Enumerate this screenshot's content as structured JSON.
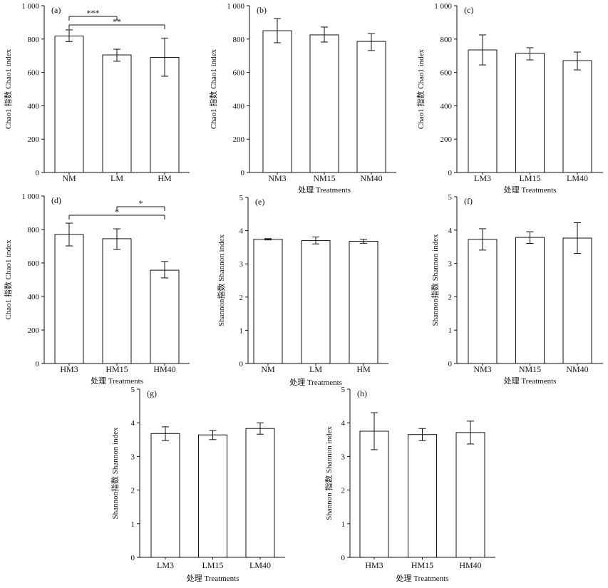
{
  "chart_data": [
    {
      "label": "(a)",
      "type": "bar",
      "categories": [
        "NM",
        "LM",
        "HM"
      ],
      "values": [
        818,
        705,
        690
      ],
      "errors": [
        [
          785,
          855
        ],
        [
          667,
          739
        ],
        [
          577,
          806
        ]
      ],
      "ylabel": "Chao1 指数 Chao1 index",
      "ylim": [
        0,
        1000
      ],
      "yticks": [
        0,
        200,
        400,
        600,
        800,
        1000
      ],
      "ytick_labels": [
        "0",
        "200",
        "400",
        "600",
        "800",
        "1 000"
      ],
      "significance": [
        {
          "from": "NM",
          "to": "LM",
          "label": "***"
        },
        {
          "from": "NM",
          "to": "HM",
          "label": "**"
        }
      ]
    },
    {
      "label": "(b)",
      "type": "bar",
      "categories": [
        "NM3",
        "NM15",
        "NM40"
      ],
      "values": [
        850,
        825,
        786
      ],
      "errors": [
        [
          778,
          923
        ],
        [
          782,
          872
        ],
        [
          731,
          833
        ]
      ],
      "ylabel": "Chao1 指数 Chao1 index",
      "xlabel": "处理 Treatments",
      "ylim": [
        0,
        1000
      ],
      "yticks": [
        0,
        200,
        400,
        600,
        800,
        1000
      ],
      "ytick_labels": [
        "0",
        "200",
        "400",
        "600",
        "800",
        "1 000"
      ]
    },
    {
      "label": "(c)",
      "type": "bar",
      "categories": [
        "LM3",
        "LM15",
        "LM40"
      ],
      "values": [
        735,
        714,
        671
      ],
      "errors": [
        [
          645,
          825
        ],
        [
          675,
          748
        ],
        [
          615,
          722
        ]
      ],
      "ylabel": "Chao1 指数 Chao1 index",
      "xlabel": "处理 Treatments",
      "ylim": [
        0,
        1000
      ],
      "yticks": [
        0,
        200,
        400,
        600,
        800,
        1000
      ],
      "ytick_labels": [
        "0",
        "200",
        "400",
        "600",
        "800",
        "1 000"
      ]
    },
    {
      "label": "(d)",
      "type": "bar",
      "categories": [
        "HM3",
        "HM15",
        "HM40"
      ],
      "values": [
        770,
        745,
        557
      ],
      "errors": [
        [
          702,
          838
        ],
        [
          681,
          804
        ],
        [
          511,
          609
        ]
      ],
      "ylabel": "Chao1 指数 Chao1 index",
      "xlabel": "处理 Treatments",
      "ylim": [
        0,
        1000
      ],
      "yticks": [
        0,
        200,
        400,
        600,
        800,
        1000
      ],
      "ytick_labels": [
        "0",
        "200",
        "400",
        "600",
        "800",
        "1 000"
      ],
      "significance": [
        {
          "from": "HM15",
          "to": "HM40",
          "label": "*"
        },
        {
          "from": "HM3",
          "to": "HM40",
          "label": "*"
        }
      ]
    },
    {
      "label": "(e)",
      "type": "bar",
      "categories": [
        "NM",
        "LM",
        "HM"
      ],
      "values": [
        3.74,
        3.7,
        3.68
      ],
      "errors": [
        [
          3.72,
          3.76
        ],
        [
          3.6,
          3.81
        ],
        [
          3.62,
          3.74
        ]
      ],
      "ylabel": "Shannon指数 Shannon index",
      "xlabel": "处理 Treatments",
      "ylim": [
        0,
        5
      ],
      "yticks": [
        0,
        1,
        2,
        3,
        4,
        5
      ],
      "ytick_labels": [
        "0",
        "1",
        "2",
        "3",
        "4",
        "5"
      ]
    },
    {
      "label": "(f)",
      "type": "bar",
      "categories": [
        "NM3",
        "NM15",
        "NM40"
      ],
      "values": [
        3.72,
        3.78,
        3.76
      ],
      "errors": [
        [
          3.4,
          4.04
        ],
        [
          3.6,
          3.95
        ],
        [
          3.3,
          4.22
        ]
      ],
      "ylabel": "Shannon指数 Shannon index",
      "xlabel": "处理 Treatments",
      "ylim": [
        0,
        5
      ],
      "yticks": [
        0,
        1,
        2,
        3,
        4,
        5
      ],
      "ytick_labels": [
        "0",
        "1",
        "2",
        "3",
        "4",
        "5"
      ]
    },
    {
      "label": "(g)",
      "type": "bar",
      "categories": [
        "LM3",
        "LM15",
        "LM40"
      ],
      "values": [
        3.68,
        3.64,
        3.83
      ],
      "errors": [
        [
          3.47,
          3.88
        ],
        [
          3.5,
          3.77
        ],
        [
          3.66,
          4.0
        ]
      ],
      "ylabel": "Shannon指数 Shannon index",
      "xlabel": "处理 Treatments",
      "ylim": [
        0,
        5
      ],
      "yticks": [
        0,
        1,
        2,
        3,
        4,
        5
      ],
      "ytick_labels": [
        "0",
        "1",
        "2",
        "3",
        "4",
        "5"
      ]
    },
    {
      "label": "(h)",
      "type": "bar",
      "categories": [
        "HM3",
        "HM15",
        "HM40"
      ],
      "values": [
        3.75,
        3.65,
        3.71
      ],
      "errors": [
        [
          3.2,
          4.3
        ],
        [
          3.47,
          3.83
        ],
        [
          3.37,
          4.05
        ]
      ],
      "ylabel": "Shannon 指数 Shannon index",
      "xlabel": "处理 Treatments",
      "ylim": [
        0,
        5
      ],
      "yticks": [
        0,
        1,
        2,
        3,
        4,
        5
      ],
      "ytick_labels": [
        "0",
        "1",
        "2",
        "3",
        "4",
        "5"
      ]
    }
  ]
}
